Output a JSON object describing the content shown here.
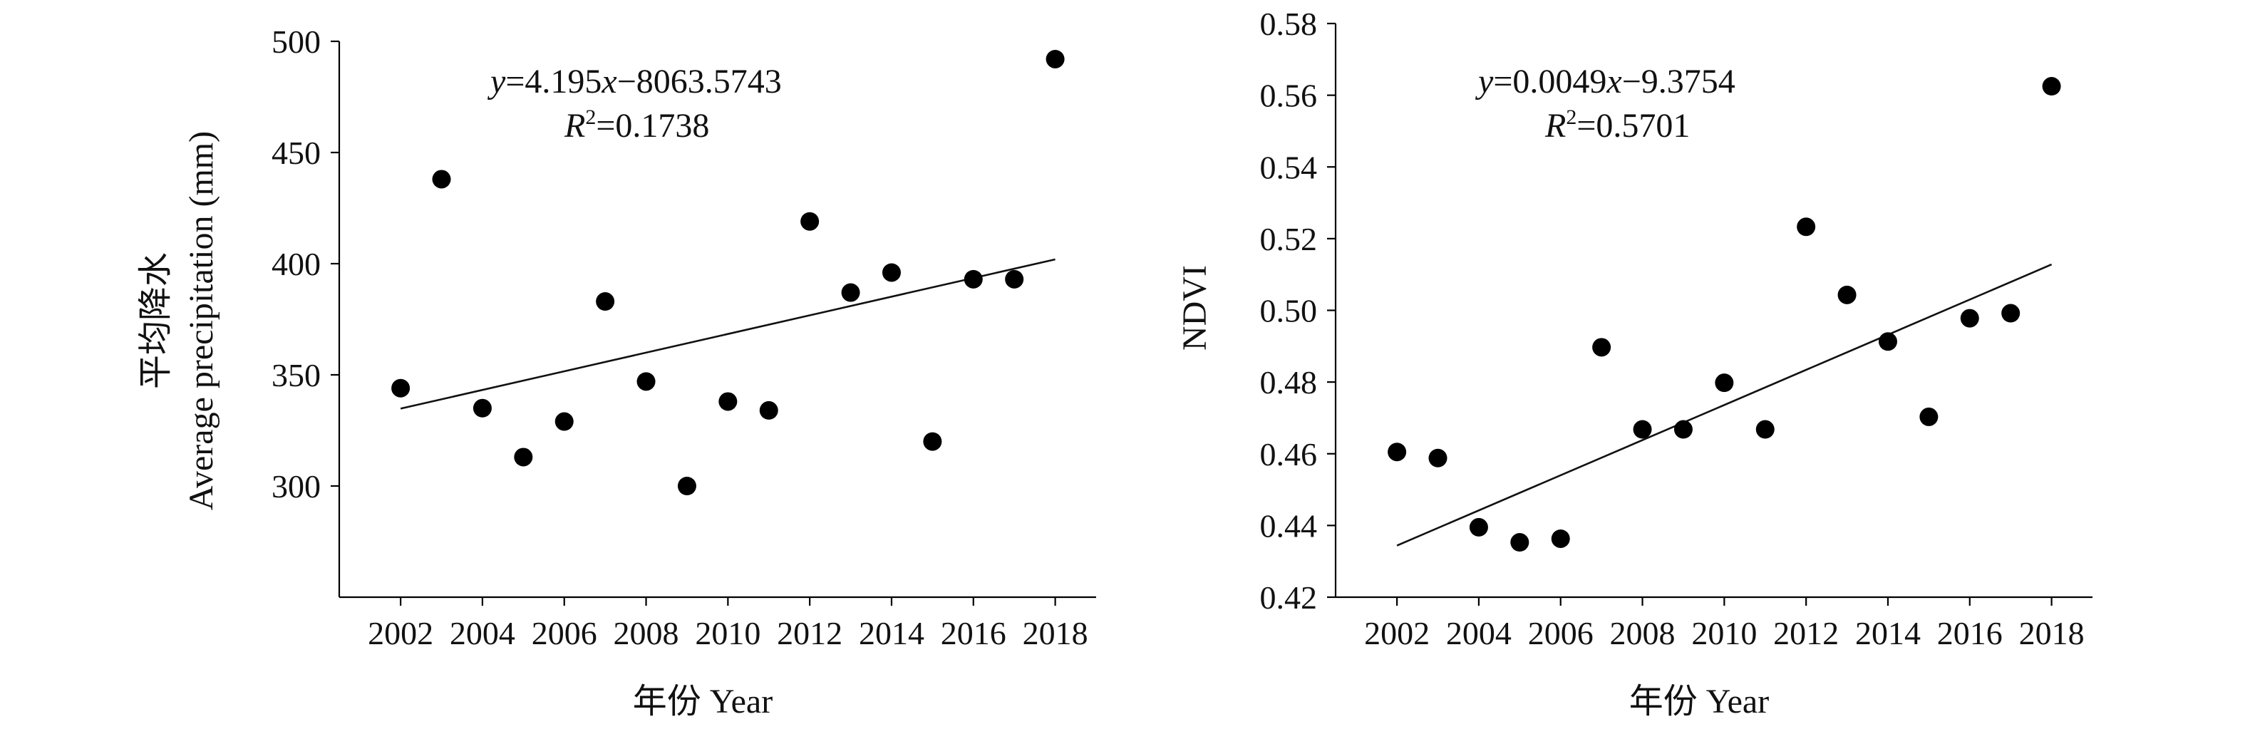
{
  "chart_data": [
    {
      "type": "scatter",
      "title": "",
      "xlabel": "年份 Year",
      "ylabel_line1": "平均降水",
      "ylabel_line2": "Average precipitation (mm)",
      "xlim": [
        2000.5,
        2019
      ],
      "ylim": [
        250,
        500
      ],
      "xticks": [
        2002,
        2004,
        2006,
        2008,
        2010,
        2012,
        2014,
        2016,
        2018
      ],
      "yticks": [
        300,
        350,
        400,
        450,
        500
      ],
      "ytick_decimals": 0,
      "x": [
        2002,
        2003,
        2004,
        2005,
        2006,
        2007,
        2008,
        2009,
        2010,
        2011,
        2012,
        2013,
        2014,
        2015,
        2016,
        2017,
        2018
      ],
      "y": [
        344,
        438,
        335,
        313,
        329,
        383,
        347,
        300,
        338,
        334,
        419,
        387,
        396,
        320,
        393,
        393,
        492
      ],
      "trendline": {
        "slope": 4.195,
        "intercept": -8063.5743,
        "x_range": [
          2002,
          2018
        ]
      },
      "equation": {
        "prefix": "y",
        "text": "=4.195",
        "var": "x",
        "rest": "−8063.5743"
      },
      "r2": {
        "r": "R",
        "sup": "2",
        "value": "=0.1738"
      },
      "point_color": "#000000"
    },
    {
      "type": "scatter",
      "title": "",
      "xlabel": "年份 Year",
      "ylabel": "NDVI",
      "xlim": [
        2000.5,
        2019
      ],
      "ylim": [
        0.42,
        0.58
      ],
      "xticks": [
        2002,
        2004,
        2006,
        2008,
        2010,
        2012,
        2014,
        2016,
        2018
      ],
      "yticks": [
        0.42,
        0.44,
        0.46,
        0.48,
        0.5,
        0.52,
        0.54,
        0.56,
        0.58
      ],
      "ytick_decimals": 2,
      "x": [
        2002,
        2003,
        2004,
        2005,
        2006,
        2007,
        2008,
        2009,
        2010,
        2011,
        2012,
        2013,
        2014,
        2015,
        2016,
        2017,
        2018
      ],
      "y": [
        0.4605,
        0.4588,
        0.4395,
        0.4353,
        0.4363,
        0.4897,
        0.4668,
        0.4668,
        0.4798,
        0.4668,
        0.5233,
        0.5043,
        0.4913,
        0.4703,
        0.4978,
        0.4992,
        0.5625
      ],
      "trendline": {
        "slope": 0.0049,
        "intercept": -9.3754,
        "x_range": [
          2002,
          2018
        ]
      },
      "equation": {
        "prefix": "y",
        "text": "=0.0049",
        "var": "x",
        "rest": "−9.3754"
      },
      "r2": {
        "r": "R",
        "sup": "2",
        "value": "=0.5701"
      },
      "point_color": "#000000"
    }
  ]
}
